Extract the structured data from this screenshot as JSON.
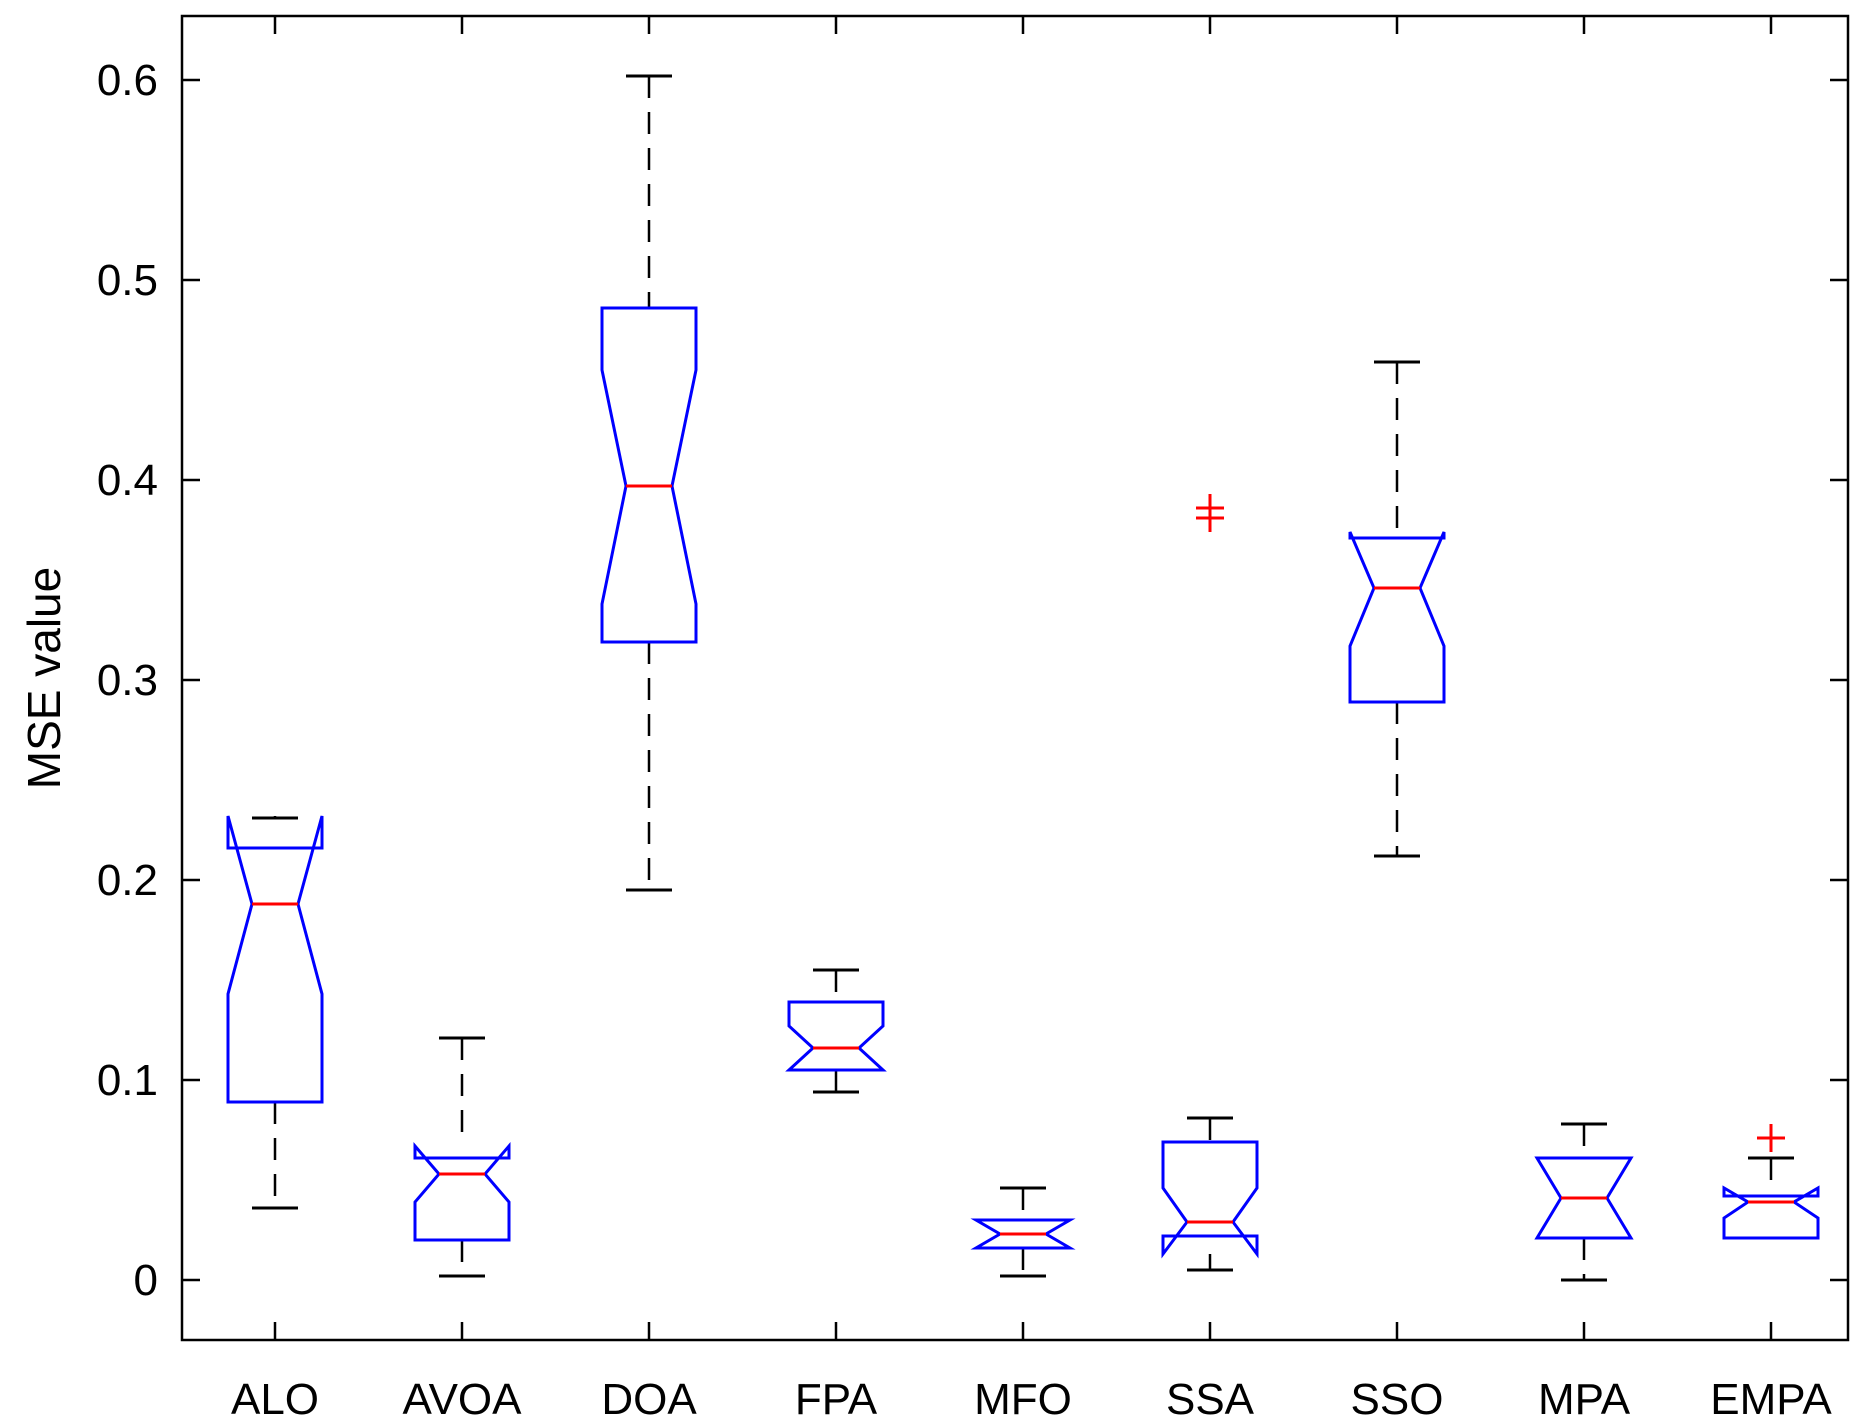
{
  "chart_data": {
    "type": "box",
    "title": "",
    "xlabel": "",
    "ylabel": "MSE value",
    "ylim": [
      -0.03,
      0.632
    ],
    "yticks": [
      0,
      0.1,
      0.2,
      0.3,
      0.4,
      0.5,
      0.6
    ],
    "ytick_labels": [
      "0",
      "0.1",
      "0.2",
      "0.3",
      "0.4",
      "0.5",
      "0.6"
    ],
    "notched": true,
    "grid": false,
    "legend": "none",
    "categories": [
      "ALO",
      "AVOA",
      "DOA",
      "FPA",
      "MFO",
      "SSA",
      "SSO",
      "MPA",
      "EMPA"
    ],
    "boxes": [
      {
        "name": "ALO",
        "whisker_low": 0.036,
        "q1": 0.089,
        "notch_low": 0.143,
        "median": 0.188,
        "notch_high": 0.232,
        "q3": 0.216,
        "whisker_high": 0.231,
        "outliers": []
      },
      {
        "name": "AVOA",
        "whisker_low": 0.002,
        "q1": 0.02,
        "notch_low": 0.039,
        "median": 0.053,
        "notch_high": 0.067,
        "q3": 0.061,
        "whisker_high": 0.121,
        "outliers": []
      },
      {
        "name": "DOA",
        "whisker_low": 0.195,
        "q1": 0.319,
        "notch_low": 0.338,
        "median": 0.397,
        "notch_high": 0.455,
        "q3": 0.486,
        "whisker_high": 0.602,
        "outliers": []
      },
      {
        "name": "FPA",
        "whisker_low": 0.094,
        "q1": 0.105,
        "notch_low": 0.105,
        "median": 0.116,
        "notch_high": 0.127,
        "q3": 0.139,
        "whisker_high": 0.155,
        "outliers": []
      },
      {
        "name": "MFO",
        "whisker_low": 0.002,
        "q1": 0.016,
        "notch_low": 0.016,
        "median": 0.023,
        "notch_high": 0.03,
        "q3": 0.03,
        "whisker_high": 0.046,
        "outliers": []
      },
      {
        "name": "SSA",
        "whisker_low": 0.005,
        "q1": 0.022,
        "notch_low": 0.013,
        "median": 0.029,
        "notch_high": 0.046,
        "q3": 0.069,
        "whisker_high": 0.081,
        "outliers": [
          0.381,
          0.386
        ]
      },
      {
        "name": "SSO",
        "whisker_low": 0.212,
        "q1": 0.289,
        "notch_low": 0.317,
        "median": 0.346,
        "notch_high": 0.374,
        "q3": 0.371,
        "whisker_high": 0.459,
        "outliers": []
      },
      {
        "name": "MPA",
        "whisker_low": 0.0,
        "q1": 0.021,
        "notch_low": 0.021,
        "median": 0.041,
        "notch_high": 0.061,
        "q3": 0.061,
        "whisker_high": 0.078,
        "outliers": []
      },
      {
        "name": "EMPA",
        "whisker_low": 0.021,
        "q1": 0.021,
        "notch_low": 0.031,
        "median": 0.039,
        "notch_high": 0.046,
        "q3": 0.042,
        "whisker_high": 0.061,
        "outliers": [
          0.071
        ]
      }
    ],
    "colors": {
      "box": "#0000ff",
      "median": "#ff0000",
      "whisker": "#000000",
      "outlier": "#ff0000",
      "axes": "#000000"
    }
  }
}
